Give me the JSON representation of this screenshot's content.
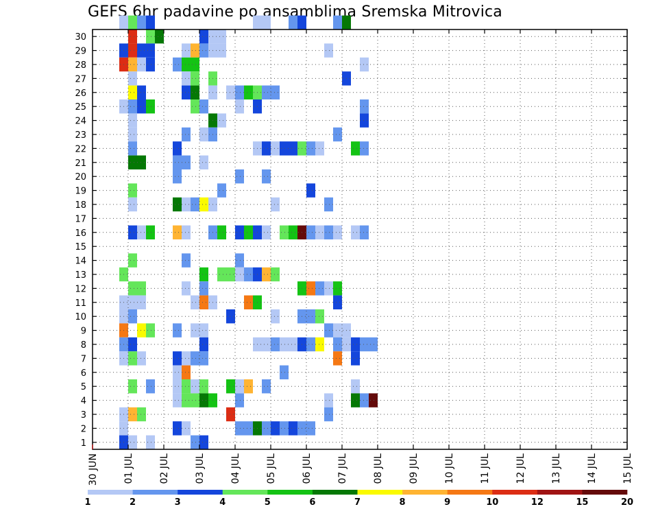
{
  "chart_data": {
    "type": "heatmap",
    "title": "GEFS 6hr padavine po ansamblima Sremska Mitrovica",
    "xlabel": "",
    "ylabel": "",
    "x_ticks": [
      "30 JUN",
      "01 JUL",
      "02 JUL",
      "03 JUL",
      "04 JUL",
      "05 JUL",
      "06 JUL",
      "07 JUL",
      "08 JUL",
      "09 JUL",
      "10 JUL",
      "11 JUL",
      "12 JUL",
      "13 JUL",
      "14 JUL",
      "15 JUL"
    ],
    "y_ticks": [
      "1",
      "2",
      "3",
      "4",
      "5",
      "6",
      "7",
      "8",
      "9",
      "10",
      "11",
      "12",
      "13",
      "14",
      "15",
      "16",
      "17",
      "18",
      "19",
      "20",
      "21",
      "22",
      "23",
      "24",
      "25",
      "26",
      "27",
      "28",
      "29",
      "30"
    ],
    "x_unit": "6-hour step from 30 JUN 00Z",
    "x_range": [
      0,
      60
    ],
    "y_range": [
      0,
      30
    ],
    "grid": true,
    "colorbar": {
      "labels": [
        "1",
        "2",
        "3",
        "4",
        "5",
        "6",
        "7",
        "8",
        "9",
        "10",
        "12",
        "15",
        "20"
      ],
      "colors": [
        "#b4c8f5",
        "#6496ee",
        "#1446dc",
        "#64e65a",
        "#14c314",
        "#057805",
        "#fafa00",
        "#ffb432",
        "#f57814",
        "#dc2d14",
        "#a01414",
        "#640a0a"
      ]
    },
    "cells": [
      [
        3,
        30,
        1
      ],
      [
        4,
        30,
        4
      ],
      [
        5,
        30,
        2
      ],
      [
        6,
        30,
        3
      ],
      [
        18,
        30,
        1
      ],
      [
        19,
        30,
        1
      ],
      [
        22,
        30,
        2
      ],
      [
        23,
        30,
        3
      ],
      [
        27,
        30,
        2
      ],
      [
        28,
        30,
        6
      ],
      [
        4,
        29,
        10
      ],
      [
        6,
        29,
        4
      ],
      [
        7,
        29,
        6
      ],
      [
        12,
        29,
        3
      ],
      [
        13,
        29,
        1
      ],
      [
        14,
        29,
        1
      ],
      [
        3,
        28,
        3
      ],
      [
        4,
        28,
        10
      ],
      [
        5,
        28,
        3
      ],
      [
        6,
        28,
        3
      ],
      [
        10,
        28,
        1
      ],
      [
        11,
        28,
        8
      ],
      [
        12,
        28,
        2
      ],
      [
        13,
        28,
        1
      ],
      [
        14,
        28,
        1
      ],
      [
        26,
        28,
        1
      ],
      [
        3,
        27,
        10
      ],
      [
        4,
        27,
        8
      ],
      [
        5,
        27,
        1
      ],
      [
        6,
        27,
        3
      ],
      [
        9,
        27,
        2
      ],
      [
        10,
        27,
        5
      ],
      [
        11,
        27,
        5
      ],
      [
        30,
        27,
        1
      ],
      [
        4,
        26,
        1
      ],
      [
        10,
        26,
        1
      ],
      [
        11,
        26,
        4
      ],
      [
        13,
        26,
        4
      ],
      [
        28,
        26,
        3
      ],
      [
        4,
        25,
        7
      ],
      [
        5,
        25,
        3
      ],
      [
        10,
        25,
        3
      ],
      [
        11,
        25,
        6
      ],
      [
        13,
        25,
        1
      ],
      [
        15,
        25,
        1
      ],
      [
        16,
        25,
        2
      ],
      [
        17,
        25,
        5
      ],
      [
        18,
        25,
        4
      ],
      [
        19,
        25,
        2
      ],
      [
        20,
        25,
        2
      ],
      [
        3,
        24,
        1
      ],
      [
        4,
        24,
        2
      ],
      [
        5,
        24,
        3
      ],
      [
        6,
        24,
        5
      ],
      [
        11,
        24,
        4
      ],
      [
        12,
        24,
        2
      ],
      [
        16,
        24,
        1
      ],
      [
        18,
        24,
        3
      ],
      [
        30,
        24,
        2
      ],
      [
        4,
        23,
        1
      ],
      [
        13,
        23,
        6
      ],
      [
        14,
        23,
        1
      ],
      [
        30,
        23,
        3
      ],
      [
        4,
        22,
        1
      ],
      [
        10,
        22,
        2
      ],
      [
        12,
        22,
        1
      ],
      [
        13,
        22,
        2
      ],
      [
        27,
        22,
        2
      ],
      [
        4,
        21,
        2
      ],
      [
        9,
        21,
        3
      ],
      [
        18,
        21,
        1
      ],
      [
        19,
        21,
        3
      ],
      [
        20,
        21,
        1
      ],
      [
        21,
        21,
        3
      ],
      [
        22,
        21,
        3
      ],
      [
        23,
        21,
        4
      ],
      [
        24,
        21,
        2
      ],
      [
        25,
        21,
        1
      ],
      [
        29,
        21,
        5
      ],
      [
        30,
        21,
        2
      ],
      [
        4,
        20,
        6
      ],
      [
        5,
        20,
        6
      ],
      [
        9,
        20,
        2
      ],
      [
        10,
        20,
        2
      ],
      [
        12,
        20,
        1
      ],
      [
        9,
        19,
        2
      ],
      [
        16,
        19,
        2
      ],
      [
        19,
        19,
        2
      ],
      [
        4,
        18,
        4
      ],
      [
        14,
        18,
        2
      ],
      [
        24,
        18,
        3
      ],
      [
        4,
        17,
        1
      ],
      [
        9,
        17,
        6
      ],
      [
        10,
        17,
        1
      ],
      [
        11,
        17,
        2
      ],
      [
        12,
        17,
        7
      ],
      [
        13,
        17,
        1
      ],
      [
        20,
        17,
        1
      ],
      [
        26,
        17,
        2
      ],
      [
        4,
        15,
        3
      ],
      [
        5,
        15,
        1
      ],
      [
        6,
        15,
        5
      ],
      [
        9,
        15,
        8
      ],
      [
        10,
        15,
        1
      ],
      [
        13,
        15,
        2
      ],
      [
        14,
        15,
        5
      ],
      [
        16,
        15,
        3
      ],
      [
        17,
        15,
        5
      ],
      [
        18,
        15,
        3
      ],
      [
        19,
        15,
        1
      ],
      [
        21,
        15,
        4
      ],
      [
        22,
        15,
        5
      ],
      [
        23,
        15,
        12
      ],
      [
        24,
        15,
        2
      ],
      [
        25,
        15,
        1
      ],
      [
        26,
        15,
        2
      ],
      [
        27,
        15,
        1
      ],
      [
        29,
        15,
        1
      ],
      [
        30,
        15,
        2
      ],
      [
        4,
        13,
        4
      ],
      [
        10,
        13,
        2
      ],
      [
        16,
        13,
        2
      ],
      [
        3,
        12,
        4
      ],
      [
        12,
        12,
        5
      ],
      [
        14,
        12,
        4
      ],
      [
        15,
        12,
        4
      ],
      [
        16,
        12,
        1
      ],
      [
        17,
        12,
        2
      ],
      [
        18,
        12,
        3
      ],
      [
        19,
        12,
        8
      ],
      [
        20,
        12,
        4
      ],
      [
        4,
        11,
        4
      ],
      [
        5,
        11,
        4
      ],
      [
        10,
        11,
        1
      ],
      [
        12,
        11,
        2
      ],
      [
        23,
        11,
        5
      ],
      [
        24,
        11,
        9
      ],
      [
        25,
        11,
        2
      ],
      [
        26,
        11,
        1
      ],
      [
        27,
        11,
        5
      ],
      [
        3,
        10,
        1
      ],
      [
        4,
        10,
        1
      ],
      [
        5,
        10,
        1
      ],
      [
        11,
        10,
        1
      ],
      [
        12,
        10,
        9
      ],
      [
        13,
        10,
        1
      ],
      [
        17,
        10,
        9
      ],
      [
        18,
        10,
        5
      ],
      [
        27,
        10,
        3
      ],
      [
        3,
        9,
        1
      ],
      [
        4,
        9,
        2
      ],
      [
        15,
        9,
        3
      ],
      [
        20,
        9,
        1
      ],
      [
        23,
        9,
        2
      ],
      [
        24,
        9,
        2
      ],
      [
        25,
        9,
        4
      ],
      [
        3,
        8,
        9
      ],
      [
        5,
        8,
        7
      ],
      [
        6,
        8,
        4
      ],
      [
        9,
        8,
        2
      ],
      [
        11,
        8,
        1
      ],
      [
        12,
        8,
        1
      ],
      [
        26,
        8,
        2
      ],
      [
        27,
        8,
        1
      ],
      [
        28,
        8,
        1
      ],
      [
        3,
        7,
        2
      ],
      [
        4,
        7,
        3
      ],
      [
        12,
        7,
        3
      ],
      [
        18,
        7,
        1
      ],
      [
        19,
        7,
        1
      ],
      [
        20,
        7,
        2
      ],
      [
        21,
        7,
        1
      ],
      [
        22,
        7,
        1
      ],
      [
        23,
        7,
        3
      ],
      [
        24,
        7,
        2
      ],
      [
        25,
        7,
        7
      ],
      [
        27,
        7,
        2
      ],
      [
        28,
        7,
        1
      ],
      [
        29,
        7,
        3
      ],
      [
        30,
        7,
        2
      ],
      [
        31,
        7,
        2
      ],
      [
        3,
        6,
        1
      ],
      [
        4,
        6,
        4
      ],
      [
        5,
        6,
        1
      ],
      [
        9,
        6,
        3
      ],
      [
        10,
        6,
        1
      ],
      [
        11,
        6,
        2
      ],
      [
        12,
        6,
        2
      ],
      [
        27,
        6,
        9
      ],
      [
        29,
        6,
        3
      ],
      [
        9,
        5,
        1
      ],
      [
        10,
        5,
        9
      ],
      [
        21,
        5,
        2
      ],
      [
        4,
        4,
        4
      ],
      [
        6,
        4,
        2
      ],
      [
        9,
        4,
        1
      ],
      [
        10,
        4,
        4
      ],
      [
        11,
        4,
        1
      ],
      [
        12,
        4,
        4
      ],
      [
        15,
        4,
        5
      ],
      [
        16,
        4,
        1
      ],
      [
        17,
        4,
        8
      ],
      [
        19,
        4,
        2
      ],
      [
        29,
        4,
        1
      ],
      [
        9,
        3,
        1
      ],
      [
        10,
        3,
        4
      ],
      [
        11,
        3,
        4
      ],
      [
        12,
        3,
        6
      ],
      [
        13,
        3,
        5
      ],
      [
        16,
        3,
        2
      ],
      [
        26,
        3,
        1
      ],
      [
        29,
        3,
        6
      ],
      [
        30,
        3,
        2
      ],
      [
        31,
        3,
        12
      ],
      [
        3,
        2,
        1
      ],
      [
        4,
        2,
        8
      ],
      [
        5,
        2,
        4
      ],
      [
        15,
        2,
        10
      ],
      [
        26,
        2,
        2
      ],
      [
        3,
        1,
        1
      ],
      [
        9,
        1,
        3
      ],
      [
        10,
        1,
        1
      ],
      [
        16,
        1,
        2
      ],
      [
        17,
        1,
        2
      ],
      [
        18,
        1,
        6
      ],
      [
        19,
        1,
        2
      ],
      [
        20,
        1,
        3
      ],
      [
        21,
        1,
        2
      ],
      [
        22,
        1,
        3
      ],
      [
        23,
        1,
        2
      ],
      [
        24,
        1,
        2
      ],
      [
        3,
        0,
        3
      ],
      [
        4,
        0,
        1
      ],
      [
        6,
        0,
        1
      ],
      [
        11,
        0,
        2
      ],
      [
        12,
        0,
        3
      ]
    ]
  }
}
